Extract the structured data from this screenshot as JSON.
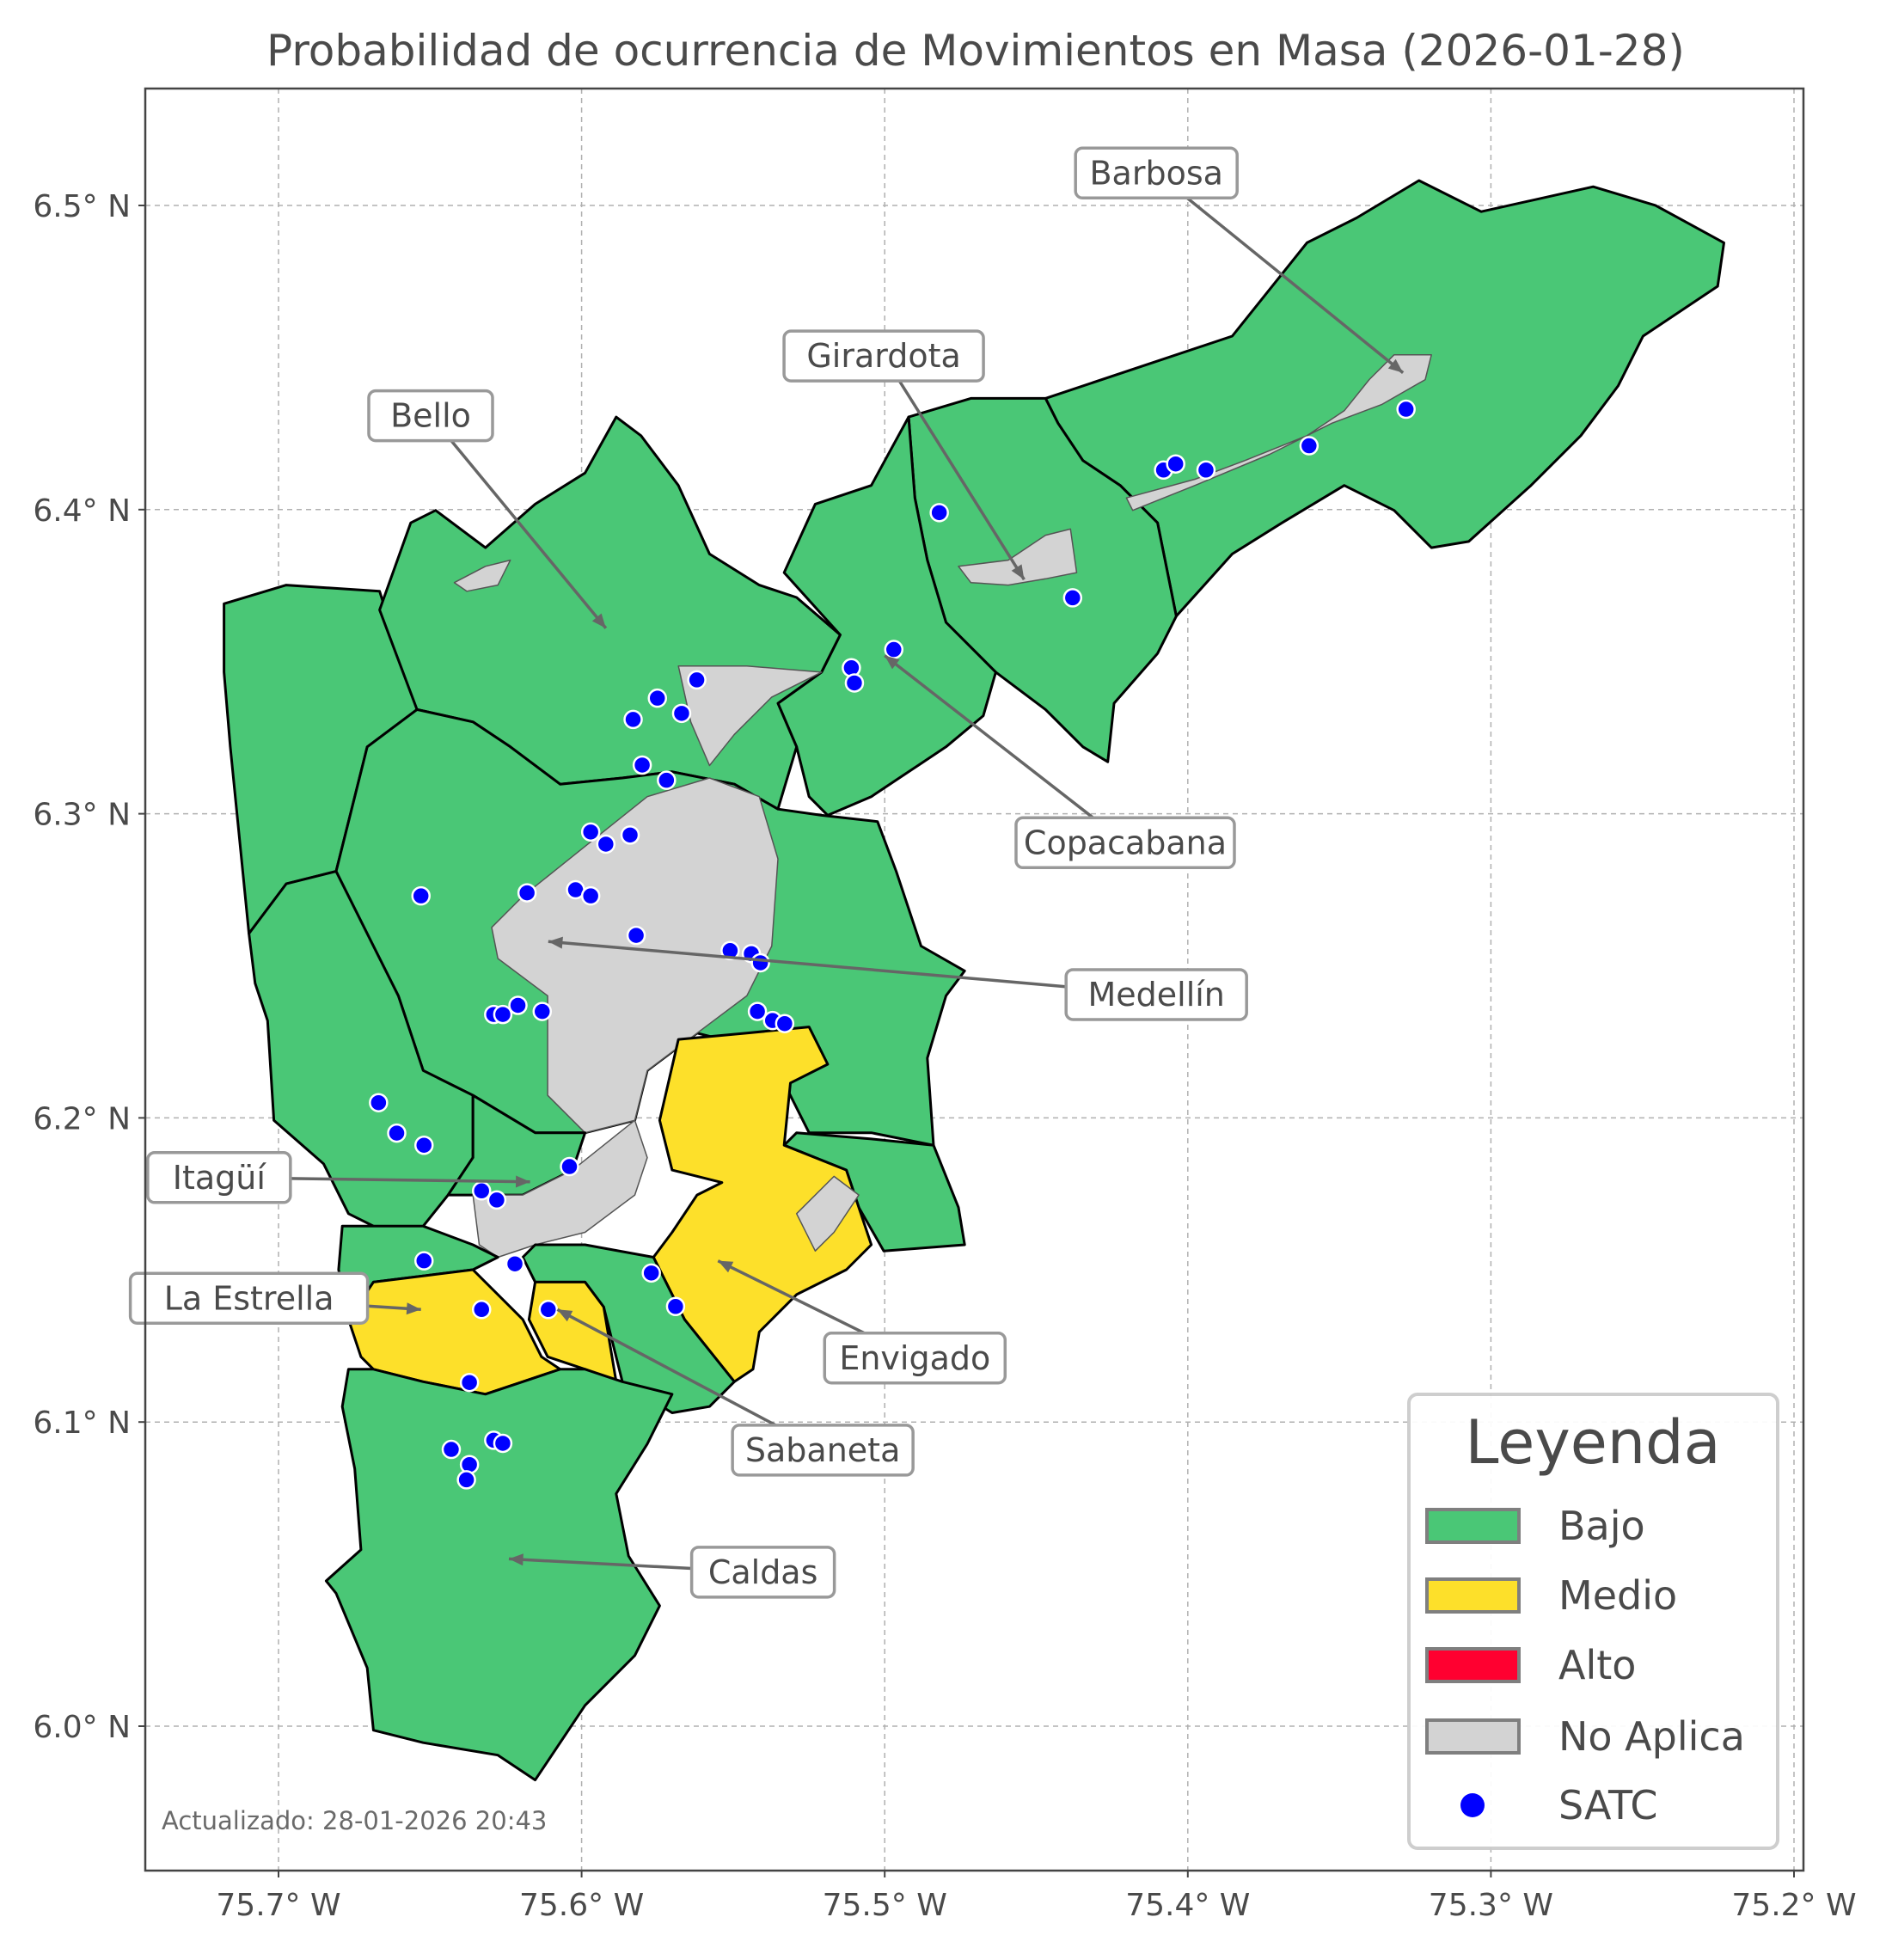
{
  "title": "Probabilidad de ocurrencia de Movimientos en Masa (2026-01-28)",
  "footer": "Actualizado: 28-01-2026 20:43",
  "colors": {
    "bajo": "#4ac776",
    "medio": "#fde02a",
    "alto": "#ff0030",
    "no_aplica": "#d3d3d3",
    "satc": "#0000ff",
    "boundary": "#000000",
    "grid": "#b0b0b0"
  },
  "axes": {
    "lon_ticks": [
      {
        "value": -75.7,
        "label": "75.7° W"
      },
      {
        "value": -75.6,
        "label": "75.6° W"
      },
      {
        "value": -75.5,
        "label": "75.5° W"
      },
      {
        "value": -75.4,
        "label": "75.4° W"
      },
      {
        "value": -75.3,
        "label": "75.3° W"
      },
      {
        "value": -75.2,
        "label": "75.2° W"
      }
    ],
    "lat_ticks": [
      {
        "value": 6.5,
        "label": "6.5° N"
      },
      {
        "value": 6.4,
        "label": "6.4° N"
      },
      {
        "value": 6.3,
        "label": "6.3° N"
      },
      {
        "value": 6.2,
        "label": "6.2° N"
      },
      {
        "value": 6.1,
        "label": "6.1° N"
      },
      {
        "value": 6.0,
        "label": "6.0° N"
      }
    ],
    "lon_range": [
      -75.744,
      -75.197
    ],
    "lat_range": [
      5.952,
      6.538
    ],
    "grid": true
  },
  "legend": {
    "title": "Leyenda",
    "placement": "bottom-right",
    "items": [
      {
        "label": "Bajo",
        "type": "patch",
        "color": "#4ac776"
      },
      {
        "label": "Medio",
        "type": "patch",
        "color": "#fde02a"
      },
      {
        "label": "Alto",
        "type": "patch",
        "color": "#ff0030"
      },
      {
        "label": "No Aplica",
        "type": "patch",
        "color": "#d3d3d3"
      },
      {
        "label": "SATC",
        "type": "point",
        "color": "#0000ff"
      }
    ]
  },
  "municipalities": [
    {
      "name": "Barbosa",
      "level": "Bajo"
    },
    {
      "name": "Girardota",
      "level": "Bajo"
    },
    {
      "name": "Copacabana",
      "level": "Bajo"
    },
    {
      "name": "Bello",
      "level": "Bajo"
    },
    {
      "name": "Medellín",
      "level": "Bajo"
    },
    {
      "name": "Itagüí",
      "level": "Bajo"
    },
    {
      "name": "Envigado",
      "level": "Medio"
    },
    {
      "name": "Sabaneta",
      "level": "Medio"
    },
    {
      "name": "La Estrella",
      "level": "Medio"
    },
    {
      "name": "Caldas",
      "level": "Bajo"
    }
  ],
  "annotations": [
    {
      "label": "Barbosa",
      "target": [
        -75.329,
        6.445
      ]
    },
    {
      "label": "Girardota",
      "target": [
        -75.454,
        6.377
      ]
    },
    {
      "label": "Bello",
      "target": [
        -75.592,
        6.361
      ]
    },
    {
      "label": "Copacabana",
      "target": [
        -75.5,
        6.352
      ]
    },
    {
      "label": "Medellín",
      "target": [
        -75.611,
        6.258
      ]
    },
    {
      "label": "Itagüí",
      "target": [
        -75.617,
        6.179
      ]
    },
    {
      "label": "La Estrella",
      "target": [
        -75.653,
        6.137
      ]
    },
    {
      "label": "Envigado",
      "target": [
        -75.555,
        6.153
      ]
    },
    {
      "label": "Sabaneta",
      "target": [
        -75.608,
        6.137
      ]
    },
    {
      "label": "Caldas",
      "target": [
        -75.624,
        6.055
      ]
    }
  ],
  "satc_points": [
    [
      -75.482,
      6.399
    ],
    [
      -75.408,
      6.413
    ],
    [
      -75.404,
      6.415
    ],
    [
      -75.394,
      6.413
    ],
    [
      -75.36,
      6.421
    ],
    [
      -75.328,
      6.433
    ],
    [
      -75.438,
      6.371
    ],
    [
      -75.497,
      6.354
    ],
    [
      -75.511,
      6.348
    ],
    [
      -75.51,
      6.343
    ],
    [
      -75.562,
      6.344
    ],
    [
      -75.567,
      6.333
    ],
    [
      -75.575,
      6.338
    ],
    [
      -75.583,
      6.331
    ],
    [
      -75.58,
      6.316
    ],
    [
      -75.572,
      6.311
    ],
    [
      -75.597,
      6.294
    ],
    [
      -75.584,
      6.293
    ],
    [
      -75.592,
      6.29
    ],
    [
      -75.653,
      6.273
    ],
    [
      -75.618,
      6.274
    ],
    [
      -75.602,
      6.275
    ],
    [
      -75.597,
      6.273
    ],
    [
      -75.582,
      6.26
    ],
    [
      -75.551,
      6.255
    ],
    [
      -75.544,
      6.254
    ],
    [
      -75.541,
      6.251
    ],
    [
      -75.542,
      6.235
    ],
    [
      -75.537,
      6.232
    ],
    [
      -75.533,
      6.231
    ],
    [
      -75.621,
      6.237
    ],
    [
      -75.613,
      6.235
    ],
    [
      -75.629,
      6.234
    ],
    [
      -75.626,
      6.234
    ],
    [
      -75.667,
      6.205
    ],
    [
      -75.661,
      6.195
    ],
    [
      -75.652,
      6.191
    ],
    [
      -75.604,
      6.184
    ],
    [
      -75.633,
      6.176
    ],
    [
      -75.628,
      6.173
    ],
    [
      -75.622,
      6.152
    ],
    [
      -75.652,
      6.153
    ],
    [
      -75.633,
      6.137
    ],
    [
      -75.611,
      6.137
    ],
    [
      -75.577,
      6.149
    ],
    [
      -75.569,
      6.138
    ],
    [
      -75.637,
      6.113
    ],
    [
      -75.643,
      6.091
    ],
    [
      -75.629,
      6.094
    ],
    [
      -75.626,
      6.093
    ],
    [
      -75.637,
      6.086
    ],
    [
      -75.638,
      6.081
    ]
  ]
}
